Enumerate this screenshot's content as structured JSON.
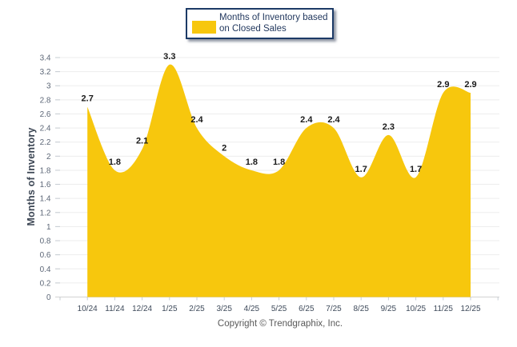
{
  "legend": {
    "line1": "Months of Inventory based",
    "line2": "on Closed Sales",
    "swatch_color": "#F7C70D",
    "border_color": "#1c3a66"
  },
  "footer": {
    "text": "Copyright © Trendgraphix, Inc."
  },
  "colors": {
    "area_fill": "#F7C70D",
    "gridline": "#ededed",
    "axis_line": "#d2d2d2",
    "tick": "#c6ccd2",
    "x_label": "#3e4a5a",
    "y_label": "#5e6878",
    "data_label": "#1a1a1a"
  },
  "chart_data": {
    "type": "area",
    "title": "",
    "xlabel": "",
    "ylabel": "Months of Inventory",
    "curve": "smooth",
    "grid": true,
    "legend_position": "top-center",
    "ylim": [
      0,
      3.4
    ],
    "y_ticks": [
      "0",
      "0.2",
      "0.4",
      "0.6",
      "0.8",
      "1",
      "1.2",
      "1.4",
      "1.6",
      "1.8",
      "2",
      "2.2",
      "2.4",
      "2.6",
      "2.8",
      "3",
      "3.2",
      "3.4"
    ],
    "categories": [
      "10/24",
      "11/24",
      "12/24",
      "1/25",
      "2/25",
      "3/25",
      "4/25",
      "5/25",
      "6/25",
      "7/25",
      "8/25",
      "9/25",
      "10/25",
      "11/25",
      "12/25"
    ],
    "series": [
      {
        "name": "Months of Inventory based on Closed Sales",
        "values": [
          2.7,
          1.8,
          2.1,
          3.3,
          2.4,
          2.0,
          1.8,
          1.8,
          2.4,
          2.4,
          1.7,
          2.3,
          1.7,
          2.9,
          2.9
        ],
        "labels": [
          "2.7",
          "1.8",
          "2.1",
          "3.3",
          "2.4",
          "2",
          "1.8",
          "1.8",
          "2.4",
          "2.4",
          "1.7",
          "2.3",
          "1.7",
          "2.9",
          "2.9"
        ]
      }
    ]
  }
}
